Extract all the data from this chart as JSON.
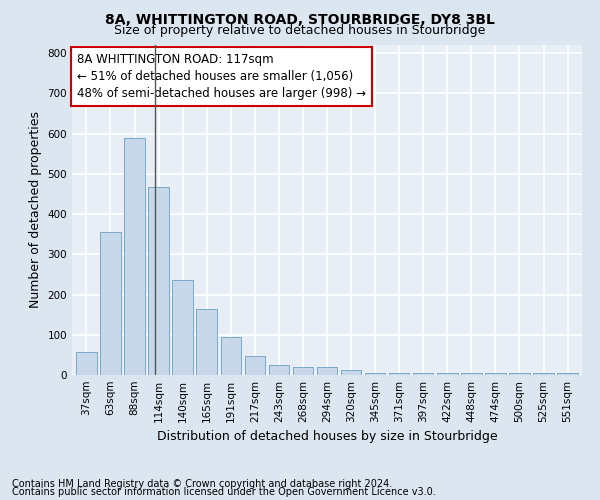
{
  "title": "8A, WHITTINGTON ROAD, STOURBRIDGE, DY8 3BL",
  "subtitle": "Size of property relative to detached houses in Stourbridge",
  "xlabel": "Distribution of detached houses by size in Stourbridge",
  "ylabel": "Number of detached properties",
  "footer_line1": "Contains HM Land Registry data © Crown copyright and database right 2024.",
  "footer_line2": "Contains public sector information licensed under the Open Government Licence v3.0.",
  "bar_labels": [
    "37sqm",
    "63sqm",
    "88sqm",
    "114sqm",
    "140sqm",
    "165sqm",
    "191sqm",
    "217sqm",
    "243sqm",
    "268sqm",
    "294sqm",
    "320sqm",
    "345sqm",
    "371sqm",
    "397sqm",
    "422sqm",
    "448sqm",
    "474sqm",
    "500sqm",
    "525sqm",
    "551sqm"
  ],
  "bar_values": [
    57,
    355,
    590,
    468,
    235,
    165,
    95,
    47,
    24,
    20,
    20,
    13,
    5,
    5,
    5,
    5,
    5,
    5,
    5,
    5,
    5
  ],
  "bar_color": "#c8d8ea",
  "bar_edge_color": "#7aaac8",
  "annotation_text": "8A WHITTINGTON ROAD: 117sqm\n← 51% of detached houses are smaller (1,056)\n48% of semi-detached houses are larger (998) →",
  "annotation_box_color": "white",
  "annotation_box_edge_color": "#cc0000",
  "vline_color": "#555555",
  "bg_color": "#dce6f0",
  "plot_bg_color": "#e8eef5",
  "grid_color": "white",
  "ylim": [
    0,
    820
  ],
  "yticks": [
    0,
    100,
    200,
    300,
    400,
    500,
    600,
    700,
    800
  ],
  "title_fontsize": 10,
  "subtitle_fontsize": 9,
  "axis_label_fontsize": 9,
  "tick_fontsize": 7.5,
  "annotation_fontsize": 8.5,
  "footer_fontsize": 7
}
